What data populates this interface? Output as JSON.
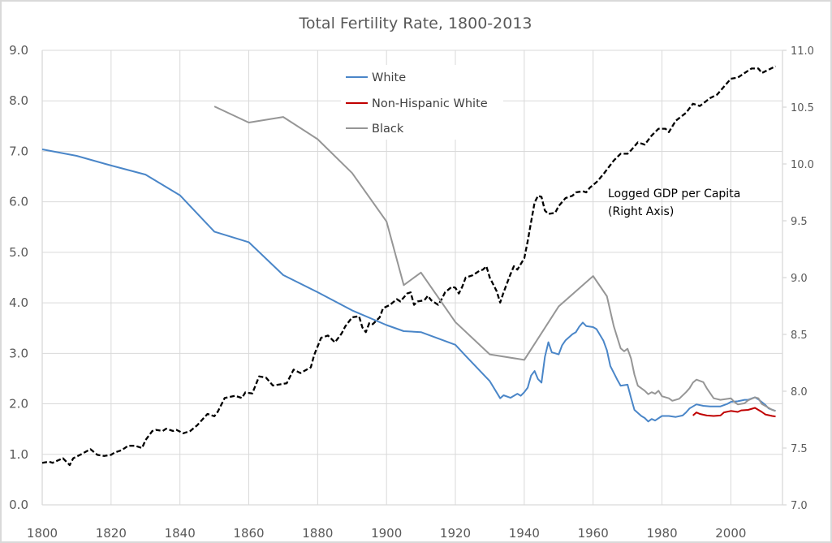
{
  "chart_data": {
    "type": "line",
    "title": "Total Fertility Rate, 1800-2013",
    "xlabel": "",
    "ylabel": "",
    "y2label": "",
    "xlim": [
      1800,
      2015
    ],
    "ylim": [
      0,
      9
    ],
    "y2lim": [
      7,
      11
    ],
    "grid": true,
    "legend_position": "top-center",
    "x_ticks": [
      "1800",
      "1820",
      "1840",
      "1860",
      "1880",
      "1900",
      "1920",
      "1940",
      "1960",
      "1980",
      "2000"
    ],
    "x_tick_values": [
      1800,
      1820,
      1840,
      1860,
      1880,
      1900,
      1920,
      1940,
      1960,
      1980,
      2000
    ],
    "y_ticks": [
      "0.0",
      "1.0",
      "2.0",
      "3.0",
      "4.0",
      "5.0",
      "6.0",
      "7.0",
      "8.0",
      "9.0"
    ],
    "y_tick_values": [
      0,
      1,
      2,
      3,
      4,
      5,
      6,
      7,
      8,
      9
    ],
    "y2_ticks": [
      "7.0",
      "7.5",
      "8.0",
      "8.5",
      "9.0",
      "9.5",
      "10.0",
      "10.5",
      "11.0"
    ],
    "y2_tick_values": [
      7,
      7.5,
      8,
      8.5,
      9,
      9.5,
      10,
      10.5,
      11
    ],
    "annotations": [
      {
        "lines": [
          "Logged GDP per Capita",
          "(Right Axis)"
        ],
        "x": 1968,
        "y2": 9.85
      }
    ],
    "series": [
      {
        "name": "White",
        "axis": "left",
        "color": "#4a86c8",
        "dash": "solid",
        "in_legend": true,
        "x": [
          1800,
          1810,
          1820,
          1830,
          1840,
          1850,
          1860,
          1870,
          1880,
          1890,
          1900,
          1905,
          1910,
          1920,
          1923,
          1930,
          1933,
          1934,
          1936,
          1938,
          1939,
          1940,
          1941,
          1942,
          1943,
          1944,
          1945,
          1946,
          1947,
          1948,
          1950,
          1951,
          1952,
          1954,
          1955,
          1956,
          1957,
          1958,
          1960,
          1961,
          1963,
          1964,
          1965,
          1967,
          1968,
          1970,
          1971,
          1972,
          1974,
          1975,
          1976,
          1977,
          1978,
          1980,
          1982,
          1984,
          1986,
          1987,
          1988,
          1990,
          1992,
          1994,
          1997,
          1999,
          2000,
          2002,
          2004,
          2005,
          2007,
          2008,
          2010,
          2011,
          2013
        ],
        "y": [
          7.04,
          6.91,
          6.72,
          6.54,
          6.13,
          5.41,
          5.2,
          4.55,
          4.21,
          3.85,
          3.56,
          3.44,
          3.42,
          3.17,
          2.95,
          2.45,
          2.11,
          2.17,
          2.12,
          2.2,
          2.16,
          2.23,
          2.32,
          2.56,
          2.65,
          2.49,
          2.42,
          2.93,
          3.22,
          3.02,
          2.98,
          3.16,
          3.26,
          3.38,
          3.42,
          3.53,
          3.61,
          3.54,
          3.52,
          3.48,
          3.25,
          3.06,
          2.75,
          2.48,
          2.36,
          2.38,
          2.12,
          1.88,
          1.76,
          1.72,
          1.65,
          1.7,
          1.67,
          1.76,
          1.76,
          1.74,
          1.77,
          1.83,
          1.91,
          1.99,
          1.96,
          1.95,
          1.95,
          2.0,
          2.04,
          2.05,
          2.08,
          2.08,
          2.13,
          2.09,
          1.98,
          1.91,
          1.86
        ]
      },
      {
        "name": "Non-Hispanic White",
        "axis": "left",
        "color": "#c00000",
        "dash": "solid",
        "in_legend": true,
        "x": [
          1989,
          1990,
          1991,
          1993,
          1995,
          1997,
          1998,
          2000,
          2002,
          2003,
          2005,
          2007,
          2009,
          2010,
          2012,
          2013
        ],
        "y": [
          1.77,
          1.83,
          1.8,
          1.77,
          1.76,
          1.77,
          1.83,
          1.86,
          1.84,
          1.87,
          1.88,
          1.92,
          1.84,
          1.79,
          1.76,
          1.75
        ]
      },
      {
        "name": "Black",
        "axis": "left",
        "color": "#969696",
        "dash": "solid",
        "in_legend": true,
        "x": [
          1850,
          1860,
          1870,
          1880,
          1890,
          1900,
          1905,
          1910,
          1920,
          1930,
          1940,
          1950,
          1960,
          1964,
          1966,
          1968,
          1969,
          1970,
          1971,
          1972,
          1973,
          1975,
          1976,
          1977,
          1978,
          1979,
          1980,
          1982,
          1983,
          1985,
          1987,
          1988,
          1989,
          1990,
          1992,
          1993,
          1995,
          1997,
          1998,
          2000,
          2001,
          2002,
          2004,
          2005,
          2007,
          2008,
          2009,
          2011,
          2012,
          2013
        ],
        "y": [
          7.89,
          7.57,
          7.68,
          7.24,
          6.57,
          5.61,
          4.35,
          4.6,
          3.62,
          2.98,
          2.87,
          3.93,
          4.53,
          4.13,
          3.54,
          3.1,
          3.04,
          3.09,
          2.9,
          2.58,
          2.36,
          2.26,
          2.19,
          2.23,
          2.2,
          2.26,
          2.15,
          2.11,
          2.06,
          2.1,
          2.23,
          2.31,
          2.42,
          2.48,
          2.43,
          2.31,
          2.11,
          2.08,
          2.09,
          2.11,
          2.04,
          1.99,
          2.01,
          2.07,
          2.13,
          2.11,
          2.0,
          1.92,
          1.88,
          1.86
        ]
      },
      {
        "name": "Logged GDP per Capita",
        "axis": "right",
        "color": "#000000",
        "dash": "dashed",
        "in_legend": false,
        "x": [
          1800,
          1802,
          1803,
          1806,
          1807,
          1808,
          1809,
          1811,
          1814,
          1816,
          1818,
          1820,
          1821,
          1823,
          1825,
          1827,
          1829,
          1830,
          1832,
          1833,
          1835,
          1836,
          1838,
          1839,
          1841,
          1843,
          1845,
          1848,
          1850,
          1851,
          1853,
          1856,
          1858,
          1859,
          1861,
          1863,
          1865,
          1867,
          1869,
          1871,
          1873,
          1875,
          1878,
          1879,
          1881,
          1883,
          1885,
          1887,
          1888,
          1890,
          1892,
          1893,
          1894,
          1895,
          1896,
          1898,
          1899,
          1901,
          1903,
          1904,
          1906,
          1907,
          1908,
          1909,
          1911,
          1912,
          1913,
          1915,
          1916,
          1917,
          1919,
          1920,
          1921,
          1922,
          1923,
          1925,
          1927,
          1928,
          1929,
          1930,
          1932,
          1933,
          1934,
          1936,
          1937,
          1938,
          1940,
          1941,
          1942,
          1943,
          1944,
          1945,
          1946,
          1947,
          1949,
          1950,
          1952,
          1954,
          1955,
          1957,
          1958,
          1959,
          1961,
          1963,
          1966,
          1968,
          1970,
          1971,
          1973,
          1975,
          1977,
          1979,
          1981,
          1982,
          1984,
          1987,
          1989,
          1991,
          1994,
          1996,
          1998,
          2000,
          2002,
          2004,
          2006,
          2008,
          2009,
          2011,
          2013
        ],
        "y": [
          7.37,
          7.38,
          7.37,
          7.41,
          7.38,
          7.35,
          7.41,
          7.44,
          7.49,
          7.44,
          7.43,
          7.44,
          7.46,
          7.48,
          7.52,
          7.52,
          7.5,
          7.57,
          7.65,
          7.66,
          7.65,
          7.67,
          7.65,
          7.66,
          7.63,
          7.65,
          7.7,
          7.8,
          7.78,
          7.82,
          7.94,
          7.96,
          7.94,
          7.99,
          7.98,
          8.13,
          8.12,
          8.05,
          8.06,
          8.07,
          8.19,
          8.16,
          8.21,
          8.32,
          8.47,
          8.49,
          8.43,
          8.51,
          8.57,
          8.65,
          8.66,
          8.56,
          8.52,
          8.6,
          8.59,
          8.65,
          8.73,
          8.76,
          8.81,
          8.79,
          8.86,
          8.87,
          8.76,
          8.79,
          8.8,
          8.84,
          8.8,
          8.76,
          8.81,
          8.87,
          8.92,
          8.91,
          8.86,
          8.92,
          9.0,
          9.02,
          9.06,
          9.07,
          9.1,
          9.0,
          8.88,
          8.78,
          8.87,
          9.03,
          9.1,
          9.07,
          9.17,
          9.32,
          9.49,
          9.66,
          9.72,
          9.71,
          9.59,
          9.56,
          9.57,
          9.63,
          9.7,
          9.72,
          9.75,
          9.76,
          9.75,
          9.79,
          9.84,
          9.91,
          10.03,
          10.09,
          10.09,
          10.12,
          10.19,
          10.17,
          10.25,
          10.31,
          10.31,
          10.28,
          10.38,
          10.45,
          10.53,
          10.51,
          10.58,
          10.61,
          10.68,
          10.75,
          10.76,
          10.8,
          10.84,
          10.84,
          10.8,
          10.83,
          10.86
        ]
      }
    ]
  }
}
